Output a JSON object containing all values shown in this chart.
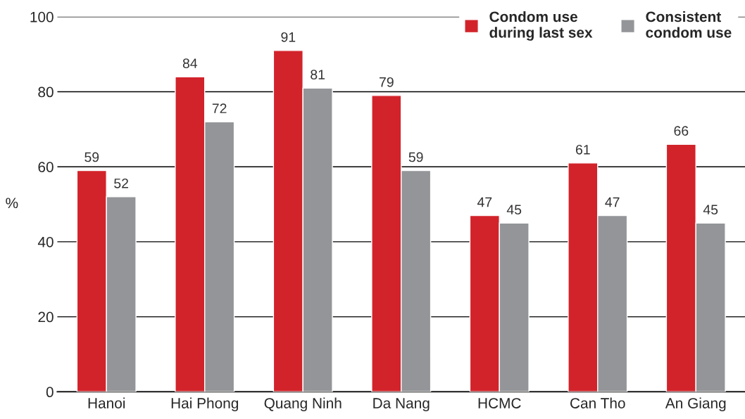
{
  "chart_data": {
    "type": "bar",
    "ylabel": "%",
    "categories": [
      "Hanoi",
      "Hai Phong",
      "Quang Ninh",
      "Da Nang",
      "HCMC",
      "Can Tho",
      "An Giang"
    ],
    "series": [
      {
        "name": "Condom use\nduring last sex",
        "color": "#d2232a",
        "values": [
          59,
          84,
          91,
          79,
          47,
          61,
          66
        ]
      },
      {
        "name": "Consistent\ncondom use",
        "color": "#939598",
        "values": [
          52,
          72,
          81,
          59,
          45,
          47,
          45
        ]
      }
    ],
    "ylim": [
      0,
      100
    ],
    "yticks": [
      0,
      20,
      40,
      60,
      80,
      100
    ],
    "grid": "y",
    "legend": "top right",
    "data_labels": true
  }
}
